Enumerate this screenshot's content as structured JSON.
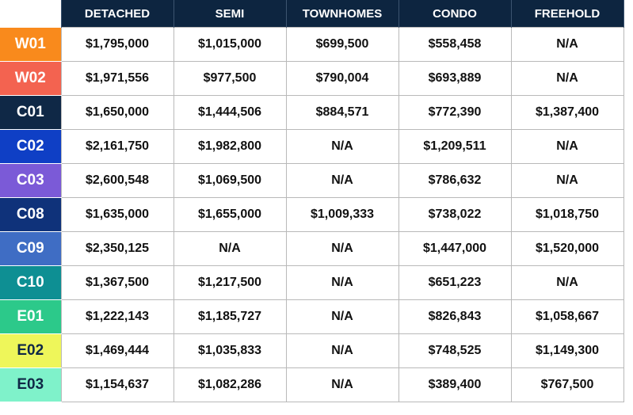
{
  "columns": [
    "DETACHED",
    "SEMI",
    "TOWNHOMES",
    "CONDO",
    "FREEHOLD"
  ],
  "rows": [
    {
      "district": "W01",
      "bg": "#f98a1c",
      "fg": "#ffffff",
      "values": [
        "$1,795,000",
        "$1,015,000",
        "$699,500",
        "$558,458",
        "N/A"
      ]
    },
    {
      "district": "W02",
      "bg": "#f36350",
      "fg": "#ffffff",
      "values": [
        "$1,971,556",
        "$977,500",
        "$790,004",
        "$693,889",
        "N/A"
      ]
    },
    {
      "district": "C01",
      "bg": "#0f2846",
      "fg": "#ffffff",
      "values": [
        "$1,650,000",
        "$1,444,506",
        "$884,571",
        "$772,390",
        "$1,387,400"
      ]
    },
    {
      "district": "C02",
      "bg": "#0f3fc5",
      "fg": "#ffffff",
      "values": [
        "$2,161,750",
        "$1,982,800",
        "N/A",
        "$1,209,511",
        "N/A"
      ]
    },
    {
      "district": "C03",
      "bg": "#7b5ad7",
      "fg": "#ffffff",
      "values": [
        "$2,600,548",
        "$1,069,500",
        "N/A",
        "$786,632",
        "N/A"
      ]
    },
    {
      "district": "C08",
      "bg": "#0f327a",
      "fg": "#ffffff",
      "values": [
        "$1,635,000",
        "$1,655,000",
        "$1,009,333",
        "$738,022",
        "$1,018,750"
      ]
    },
    {
      "district": "C09",
      "bg": "#3f6dc4",
      "fg": "#ffffff",
      "values": [
        "$2,350,125",
        "N/A",
        "N/A",
        "$1,447,000",
        "$1,520,000"
      ]
    },
    {
      "district": "C10",
      "bg": "#0e8f93",
      "fg": "#ffffff",
      "values": [
        "$1,367,500",
        "$1,217,500",
        "N/A",
        "$651,223",
        "N/A"
      ]
    },
    {
      "district": "E01",
      "bg": "#2cc98a",
      "fg": "#ffffff",
      "values": [
        "$1,222,143",
        "$1,185,727",
        "N/A",
        "$826,843",
        "$1,058,667"
      ]
    },
    {
      "district": "E02",
      "bg": "#eef65a",
      "fg": "#0f2846",
      "values": [
        "$1,469,444",
        "$1,035,833",
        "N/A",
        "$748,525",
        "$1,149,300"
      ]
    },
    {
      "district": "E03",
      "bg": "#7ff2ca",
      "fg": "#0f2846",
      "values": [
        "$1,154,637",
        "$1,082,286",
        "N/A",
        "$389,400",
        "$767,500"
      ]
    }
  ]
}
